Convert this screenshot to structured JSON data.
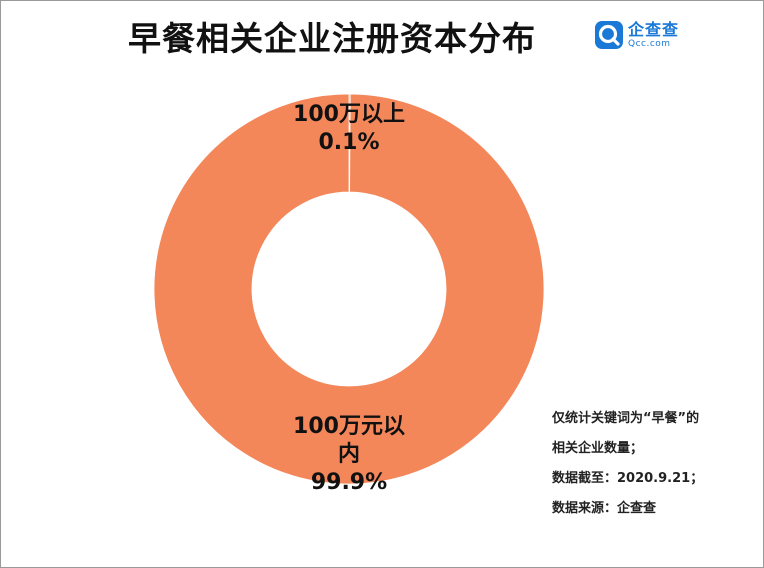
{
  "title": "早餐相关企业注册资本分布",
  "logo": {
    "name": "企查查",
    "domain": "Qcc.com"
  },
  "colors": {
    "major": "#f4875a",
    "minor": "#1b9a8e",
    "logo": "#1a78d6"
  },
  "chart_data": {
    "type": "pie",
    "donut": true,
    "title": "早餐相关企业注册资本分布",
    "slices": [
      {
        "label_lines": [
          "100万以上",
          "0.1%"
        ],
        "value": 0.1,
        "color": "#1b9a8e"
      },
      {
        "label_lines": [
          "100万元以",
          "内",
          "99.9%"
        ],
        "value": 99.9,
        "color": "#f4875a"
      }
    ]
  },
  "notes": [
    "仅统计关键词为“早餐”的",
    "相关企业数量；",
    "数据截至：2020.9.21；",
    "数据来源：企查查"
  ]
}
